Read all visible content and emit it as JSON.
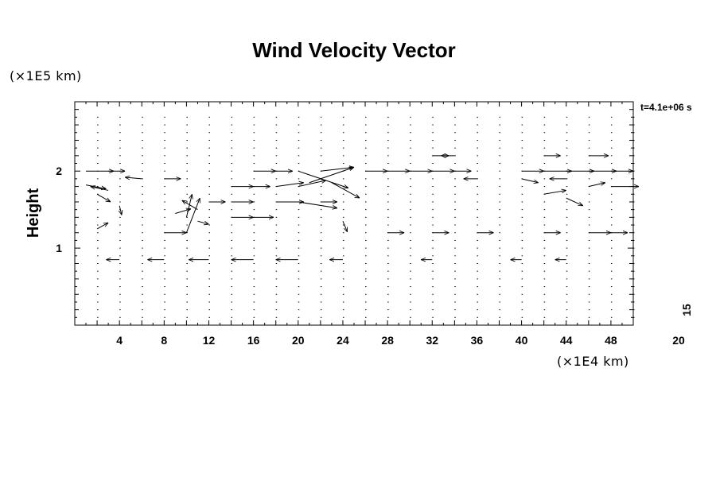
{
  "chart_data": {
    "type": "vector",
    "title": "Wind Velocity Vector",
    "xlabel": "",
    "ylabel": "Height",
    "x_unit": "(×1E4 km)",
    "y_unit": "(×1E5 km)",
    "xlim": [
      0,
      50
    ],
    "ylim": [
      0,
      2.9
    ],
    "x_ticks": [
      4,
      8,
      12,
      16,
      20,
      24,
      28,
      32,
      36,
      40,
      44,
      48
    ],
    "y_ticks": [
      1,
      2
    ],
    "time_label": "t=4.1e+06 s",
    "reference_vector": {
      "magnitude": "15",
      "label": "20"
    },
    "grid": false,
    "vectors": [
      {
        "x": 1,
        "y": 2.0,
        "u": 2.5,
        "v": 0
      },
      {
        "x": 3,
        "y": 2.0,
        "u": 1.5,
        "v": 0
      },
      {
        "x": 1,
        "y": 1.82,
        "u": 1.8,
        "v": -0.05
      },
      {
        "x": 3,
        "y": 1.75,
        "u": -1.6,
        "v": 0.05
      },
      {
        "x": 2,
        "y": 1.7,
        "u": 1.2,
        "v": -0.1
      },
      {
        "x": 2,
        "y": 1.25,
        "u": 1.0,
        "v": 0.08
      },
      {
        "x": 4,
        "y": 1.55,
        "u": 0.2,
        "v": -0.12
      },
      {
        "x": 6,
        "y": 1.9,
        "u": -1.5,
        "v": 0.02
      },
      {
        "x": 8,
        "y": 1.9,
        "u": 1.5,
        "v": 0
      },
      {
        "x": 8,
        "y": 1.2,
        "u": 2.0,
        "v": 0
      },
      {
        "x": 9,
        "y": 1.45,
        "u": 1.4,
        "v": 0.06
      },
      {
        "x": 10,
        "y": 1.2,
        "u": 1.2,
        "v": 0.45
      },
      {
        "x": 10,
        "y": 1.4,
        "u": 0.5,
        "v": 0.3
      },
      {
        "x": 11,
        "y": 1.5,
        "u": -1.4,
        "v": 0.12
      },
      {
        "x": 11,
        "y": 1.35,
        "u": 1.0,
        "v": -0.04
      },
      {
        "x": 12,
        "y": 1.6,
        "u": 1.5,
        "v": 0
      },
      {
        "x": 14,
        "y": 1.6,
        "u": 2.0,
        "v": 0
      },
      {
        "x": 14,
        "y": 1.4,
        "u": 2.0,
        "v": 0
      },
      {
        "x": 16,
        "y": 1.4,
        "u": 1.8,
        "v": 0
      },
      {
        "x": 18,
        "y": 1.6,
        "u": 2.5,
        "v": 0
      },
      {
        "x": 14,
        "y": 1.8,
        "u": 2.0,
        "v": 0
      },
      {
        "x": 16,
        "y": 1.8,
        "u": 1.5,
        "v": 0
      },
      {
        "x": 16,
        "y": 2.0,
        "u": 2.0,
        "v": 0
      },
      {
        "x": 18,
        "y": 2.0,
        "u": 1.5,
        "v": 0
      },
      {
        "x": 18,
        "y": 1.8,
        "u": 2.5,
        "v": 0.05
      },
      {
        "x": 20,
        "y": 1.8,
        "u": 2.5,
        "v": 0.08
      },
      {
        "x": 20,
        "y": 2.0,
        "u": 4.5,
        "v": -0.22
      },
      {
        "x": 21,
        "y": 1.85,
        "u": 4.0,
        "v": 0.2
      },
      {
        "x": 22,
        "y": 2.0,
        "u": 3.0,
        "v": 0.05
      },
      {
        "x": 23,
        "y": 1.85,
        "u": 2.5,
        "v": -0.2
      },
      {
        "x": 20,
        "y": 1.6,
        "u": 3.5,
        "v": -0.08
      },
      {
        "x": 22,
        "y": 1.6,
        "u": 1.5,
        "v": 0
      },
      {
        "x": 24,
        "y": 1.35,
        "u": 0.4,
        "v": -0.14
      },
      {
        "x": 26,
        "y": 2.0,
        "u": 2.0,
        "v": 0
      },
      {
        "x": 28,
        "y": 2.0,
        "u": 2.0,
        "v": 0
      },
      {
        "x": 30,
        "y": 2.0,
        "u": 2.0,
        "v": 0
      },
      {
        "x": 32,
        "y": 2.0,
        "u": 2.0,
        "v": 0
      },
      {
        "x": 34,
        "y": 2.0,
        "u": 1.5,
        "v": 0
      },
      {
        "x": 32,
        "y": 2.2,
        "u": 1.5,
        "v": 0
      },
      {
        "x": 34,
        "y": 2.2,
        "u": -1.2,
        "v": 0
      },
      {
        "x": 36,
        "y": 1.9,
        "u": -1.2,
        "v": 0
      },
      {
        "x": 40,
        "y": 2.0,
        "u": 2.0,
        "v": 0
      },
      {
        "x": 42,
        "y": 2.0,
        "u": 2.5,
        "v": 0
      },
      {
        "x": 44,
        "y": 2.0,
        "u": 2.5,
        "v": 0
      },
      {
        "x": 46,
        "y": 2.0,
        "u": 2.5,
        "v": 0
      },
      {
        "x": 48,
        "y": 2.0,
        "u": 2.0,
        "v": 0
      },
      {
        "x": 42,
        "y": 2.2,
        "u": 1.5,
        "v": 0
      },
      {
        "x": 46,
        "y": 2.2,
        "u": 1.8,
        "v": 0
      },
      {
        "x": 40,
        "y": 1.9,
        "u": 1.5,
        "v": -0.05
      },
      {
        "x": 44,
        "y": 1.9,
        "u": -1.5,
        "v": 0
      },
      {
        "x": 48,
        "y": 1.8,
        "u": 2.5,
        "v": 0
      },
      {
        "x": 46,
        "y": 1.8,
        "u": 1.5,
        "v": 0.05
      },
      {
        "x": 42,
        "y": 1.7,
        "u": 2.0,
        "v": 0.05
      },
      {
        "x": 44,
        "y": 1.65,
        "u": 1.5,
        "v": -0.1
      },
      {
        "x": 42,
        "y": 1.2,
        "u": 1.5,
        "v": 0
      },
      {
        "x": 46,
        "y": 1.2,
        "u": 2.0,
        "v": 0
      },
      {
        "x": 48,
        "y": 1.2,
        "u": 1.5,
        "v": 0
      },
      {
        "x": 4,
        "y": 0.85,
        "u": -1.2,
        "v": 0
      },
      {
        "x": 8,
        "y": 0.85,
        "u": -1.5,
        "v": 0
      },
      {
        "x": 12,
        "y": 0.85,
        "u": -1.8,
        "v": 0
      },
      {
        "x": 16,
        "y": 0.85,
        "u": -2.0,
        "v": 0
      },
      {
        "x": 20,
        "y": 0.85,
        "u": -2.0,
        "v": 0
      },
      {
        "x": 24,
        "y": 0.85,
        "u": -1.2,
        "v": 0
      },
      {
        "x": 32,
        "y": 0.85,
        "u": -1.0,
        "v": 0
      },
      {
        "x": 40,
        "y": 0.85,
        "u": -1.0,
        "v": 0
      },
      {
        "x": 44,
        "y": 0.85,
        "u": -1.0,
        "v": 0
      },
      {
        "x": 28,
        "y": 1.2,
        "u": 1.5,
        "v": 0
      },
      {
        "x": 32,
        "y": 1.2,
        "u": 1.5,
        "v": 0
      },
      {
        "x": 36,
        "y": 1.2,
        "u": 1.5,
        "v": 0
      }
    ]
  }
}
